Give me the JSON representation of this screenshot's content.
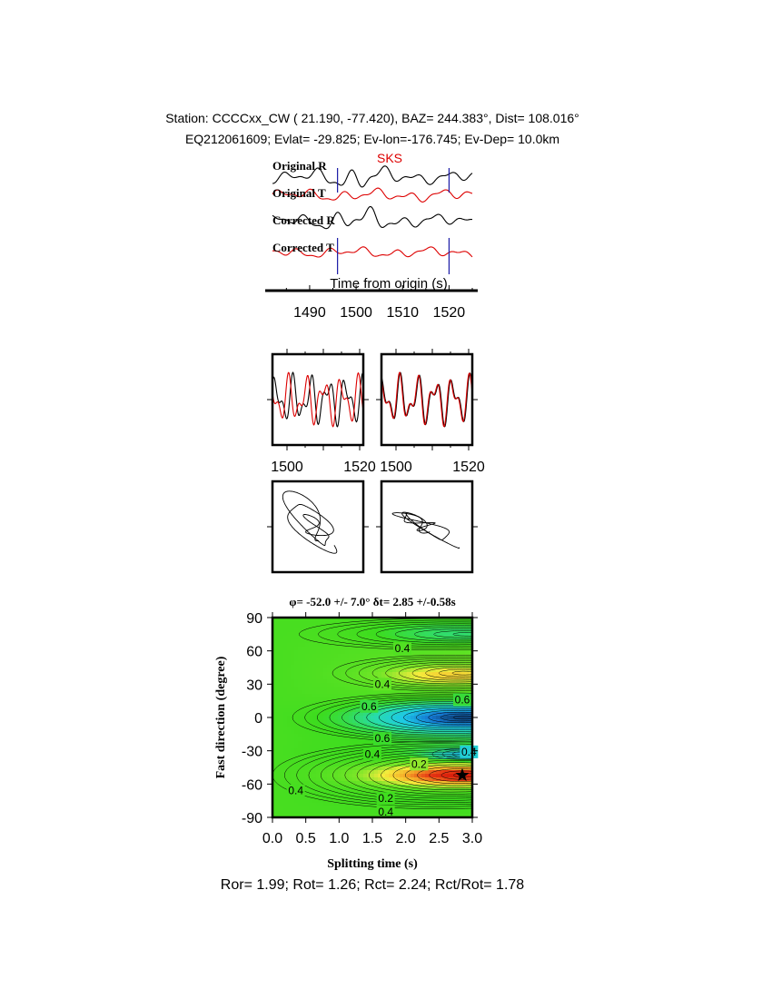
{
  "header": {
    "line1": "Station: CCCCxx_CW (  21.190,  -77.420), BAZ=  244.383°, Dist=  108.016°",
    "line2": "EQ212061609; Evlat= -29.825; Ev-lon=-176.745; Ev-Dep= 10.0km"
  },
  "footer": {
    "ratios": "Ror= 1.99; Rot= 1.26; Rct= 2.24; Rct/Rot= 1.78"
  },
  "colors": {
    "radial": "#000000",
    "transverse": "#dd0000",
    "marker": "#1a1aa6",
    "phase_label": "#dd0000"
  },
  "chart_data": [
    {
      "type": "line",
      "name": "seismograms",
      "phase_label": "SKS",
      "traces": [
        "Original R",
        "Original T",
        "Corrected R",
        "Corrected T"
      ],
      "xlabel": "Time from origin (s)",
      "xticks": [
        1490,
        1500,
        1510,
        1520
      ],
      "xlim": [
        1482,
        1525
      ],
      "window_markers": [
        1496,
        1520
      ]
    },
    {
      "type": "line",
      "name": "particle-motion-waveforms",
      "panels": 2,
      "xticks": [
        1500,
        1520
      ],
      "xlim": [
        1496,
        1521
      ]
    },
    {
      "type": "line",
      "name": "particle-motion-plots",
      "panels": 2
    },
    {
      "type": "heatmap",
      "name": "splitting-grid-search",
      "title": "φ= -52.0 +/- 7.0° δt= 2.85 +/-0.58s",
      "xlabel": "Splitting time (s)",
      "ylabel": "Fast direction (degree)",
      "xlim": [
        0,
        3
      ],
      "ylim": [
        -90,
        90
      ],
      "xticks": [
        "0.0",
        "0.5",
        "1.0",
        "1.5",
        "2.0",
        "2.5",
        "3.0"
      ],
      "yticks": [
        "90",
        "60",
        "30",
        "0",
        "-30",
        "-60",
        "-90"
      ],
      "best": {
        "phi": -52.0,
        "dt": 2.85
      },
      "contour_labels": [
        {
          "text": "0.4",
          "dt": 1.95,
          "phi": 62
        },
        {
          "text": "0.4",
          "dt": 1.65,
          "phi": 30
        },
        {
          "text": "0.6",
          "dt": 1.45,
          "phi": 10
        },
        {
          "text": "0.6",
          "dt": 2.85,
          "phi": 16
        },
        {
          "text": "0.6",
          "dt": 1.65,
          "phi": -19
        },
        {
          "text": "0.4",
          "dt": 1.5,
          "phi": -33
        },
        {
          "text": "0.4",
          "dt": 2.95,
          "phi": -31
        },
        {
          "text": "0.2",
          "dt": 2.2,
          "phi": -42
        },
        {
          "text": "0.4",
          "dt": 0.35,
          "phi": -66
        },
        {
          "text": "0.2",
          "dt": 1.7,
          "phi": -73
        },
        {
          "text": "0.4",
          "dt": 1.7,
          "phi": -85
        }
      ]
    }
  ]
}
